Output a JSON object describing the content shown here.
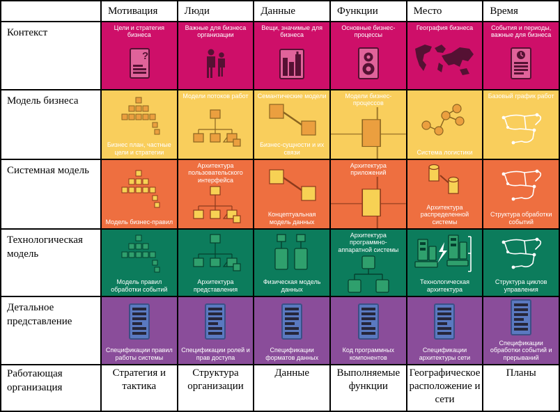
{
  "table": {
    "columns": [
      "Мотивация",
      "Люди",
      "Данные",
      "Функции",
      "Место",
      "Время"
    ],
    "rows": [
      {
        "label": "Контекст",
        "color": "#ce0f69",
        "accent": "#e0639a",
        "dark": "#551133",
        "cells": [
          {
            "caption_top": "Цели и стратегия бизнеса",
            "icon": "document-question-icon"
          },
          {
            "caption_top": "Важные для бизнеса организации",
            "icon": "people-icon"
          },
          {
            "caption_top": "Вещи, значимые для бизнеса",
            "icon": "buildings-icon"
          },
          {
            "caption_top": "Основные бизнес-процессы",
            "icon": "gears-document-icon"
          },
          {
            "caption_top": "География бизнеса",
            "icon": "world-map-icon"
          },
          {
            "caption_top": "События и периоды, важные для бизнеса",
            "icon": "calendar-document-icon"
          }
        ]
      },
      {
        "label": "Модель бизнеса",
        "color": "#f9ce5c",
        "accent": "#eb9f3f",
        "dark": "#8a6420",
        "cells": [
          {
            "caption_bottom": "Бизнес план, частные цели и стратегии",
            "icon": "pyramid-icon"
          },
          {
            "caption_top": "Модели потоков работ",
            "icon": "org-chart-icon"
          },
          {
            "caption_top": "Семантические модели",
            "caption_bottom": "Бизнес-сущности и их связи",
            "icon": "linked-boxes-icon"
          },
          {
            "caption_top": "Модели бизнес-процессов",
            "icon": "process-box-icon"
          },
          {
            "caption_bottom": "Система логистики",
            "icon": "network-nodes-icon"
          },
          {
            "caption_top": "Базовый график работ",
            "icon": "sketch-icon"
          }
        ]
      },
      {
        "label": "Системная модель",
        "color": "#ee6f40",
        "accent": "#f7d154",
        "dark": "#8c3a1c",
        "cells": [
          {
            "caption_bottom": "Модель бизнес-правил",
            "icon": "pyramid-icon"
          },
          {
            "caption_top": "Архитектура пользовательского интерфейса",
            "icon": "org-chart-icon"
          },
          {
            "caption_bottom": "Концептуальная модель данных",
            "icon": "linked-boxes-icon"
          },
          {
            "caption_top": "Архитектура приложений",
            "icon": "process-box-icon"
          },
          {
            "caption_bottom": "Архитектура распределенной системы",
            "icon": "cylinders-icon"
          },
          {
            "caption_bottom": "Структура обработки событий",
            "icon": "sketch-icon"
          }
        ]
      },
      {
        "label": "Технологическая модель",
        "color": "#0c7c5c",
        "accent": "#2fa06d",
        "dark": "#05402e",
        "cells": [
          {
            "caption_bottom": "Модель правил обработки событий",
            "icon": "pyramid-icon"
          },
          {
            "caption_bottom": "Архитектура представления",
            "icon": "org-chart-icon"
          },
          {
            "caption_bottom": "Физическая модель данных",
            "icon": "data-boxes-icon"
          },
          {
            "caption_top": "Архитектура программно-аппаратной системы",
            "icon": "tree-icon"
          },
          {
            "caption_bottom": "Технологическая архитектура",
            "icon": "computers-icon"
          },
          {
            "caption_bottom": "Структура циклов управления",
            "icon": "sketch-icon"
          }
        ]
      },
      {
        "label": "Детальное представление",
        "color": "#8a4d9a",
        "accent": "#5a79c0",
        "dark": "#26263a",
        "cells": [
          {
            "caption_bottom": "Спецификации правил работы системы",
            "icon": "spec-document-icon"
          },
          {
            "caption_bottom": "Спецификации ролей и прав доступа",
            "icon": "spec-document-icon"
          },
          {
            "caption_bottom": "Спецификации форматов данных",
            "icon": "spec-document-icon"
          },
          {
            "caption_bottom": "Код программных компонентов",
            "icon": "spec-document-icon"
          },
          {
            "caption_bottom": "Спецификации архитектуры сети",
            "icon": "spec-document-icon"
          },
          {
            "caption_bottom": "Спецификации обработки событий и прерываний",
            "icon": "spec-document-icon"
          }
        ]
      }
    ],
    "footer": {
      "label": "Работающая организация",
      "cells": [
        "Стратегия и тактика",
        "Структура организации",
        "Данные",
        "Выполняемые функции",
        "Географическое расположение и сети",
        "Планы"
      ]
    }
  }
}
